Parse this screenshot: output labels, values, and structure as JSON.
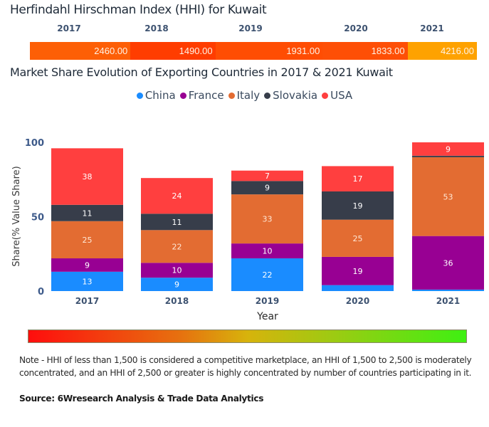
{
  "hhi": {
    "title": "Herfindahl Hirschman Index (HHI) for Kuwait",
    "years": [
      "2017",
      "2018",
      "2019",
      "2020",
      "2021"
    ],
    "values": [
      "2460.00",
      "1490.00",
      "1931.00",
      "1833.00",
      "4216.00"
    ],
    "colors": [
      "#fd5f06",
      "#ff3d00",
      "#ff4d03",
      "#fe4f06",
      "#fea200"
    ]
  },
  "legend_colors": {
    "China": "#1a8cff",
    "France": "#980093",
    "Italy": "#e36c32",
    "Slovakia": "#373d4a",
    "USA": "#ff3f3f"
  },
  "chart_data": {
    "type": "bar",
    "stacked": true,
    "title": "Market Share Evolution of Exporting Countries in 2017 & 2021 Kuwait",
    "xlabel": "Year",
    "ylabel": "Share(% Value Share)",
    "categories": [
      "2017",
      "2018",
      "2019",
      "2020",
      "2021"
    ],
    "ylim": [
      0,
      100
    ],
    "yticks": [
      0,
      50,
      100
    ],
    "grid": false,
    "legend_position": "top-center",
    "series": [
      {
        "name": "China",
        "values": [
          13,
          9,
          22,
          4,
          1
        ],
        "labels": [
          "13",
          "9",
          "22",
          "",
          ""
        ]
      },
      {
        "name": "France",
        "values": [
          9,
          10,
          10,
          19,
          36
        ],
        "labels": [
          "9",
          "10",
          "10",
          "19",
          "36"
        ]
      },
      {
        "name": "Italy",
        "values": [
          25,
          22,
          33,
          25,
          53
        ],
        "labels": [
          "25",
          "22",
          "33",
          "25",
          "53"
        ]
      },
      {
        "name": "Slovakia",
        "values": [
          11,
          11,
          9,
          19,
          1
        ],
        "labels": [
          "11",
          "11",
          "9",
          "19",
          ""
        ]
      },
      {
        "name": "USA",
        "values": [
          38,
          24,
          7,
          17,
          9
        ],
        "labels": [
          "38",
          "24",
          "7",
          "17",
          "9"
        ]
      }
    ]
  },
  "note": "Note - HHI of less than 1,500 is considered a competitive marketplace, an HHI of 1,500 to 2,500 is moderately concentrated, and an HHI of 2,500 or greater is highly concentrated by number of countries participating in it.",
  "source": "Source: 6Wresearch Analysis & Trade Data Analytics"
}
